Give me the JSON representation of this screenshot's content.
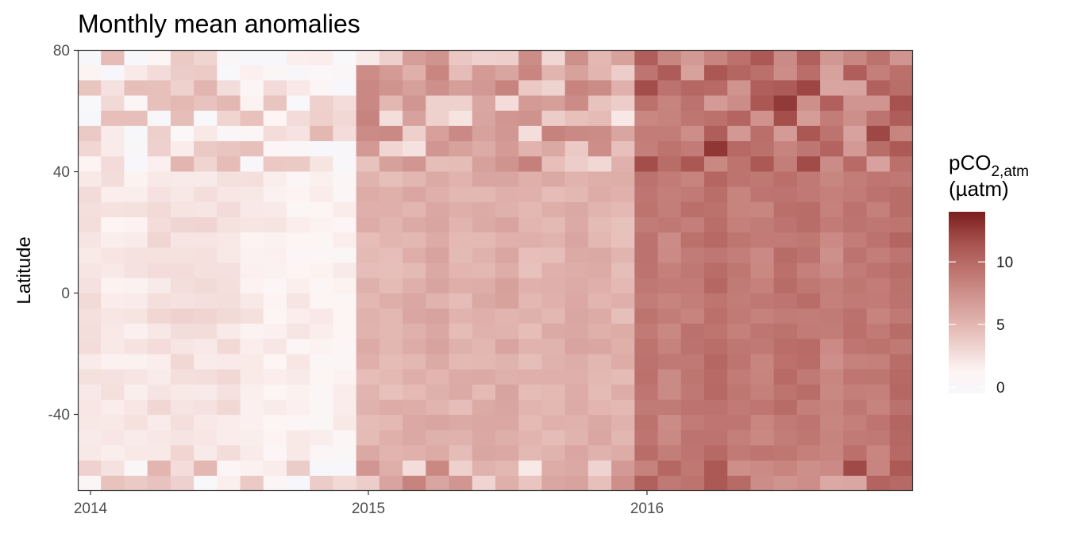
{
  "chart_data": {
    "type": "heatmap",
    "title": "Monthly mean anomalies",
    "xlabel": "",
    "ylabel": "Latitude",
    "x_tick_labels": [
      "2014",
      "2015",
      "2016"
    ],
    "y_tick_labels": [
      "80",
      "40",
      "0",
      "-40"
    ],
    "x_months": [
      "2014-01",
      "2014-02",
      "2014-03",
      "2014-04",
      "2014-05",
      "2014-06",
      "2014-07",
      "2014-08",
      "2014-09",
      "2014-10",
      "2014-11",
      "2014-12",
      "2015-01",
      "2015-02",
      "2015-03",
      "2015-04",
      "2015-05",
      "2015-06",
      "2015-07",
      "2015-08",
      "2015-09",
      "2015-10",
      "2015-11",
      "2015-12",
      "2016-01",
      "2016-02",
      "2016-03",
      "2016-04",
      "2016-05",
      "2016-06",
      "2016-07",
      "2016-08",
      "2016-09",
      "2016-10",
      "2016-11",
      "2016-12"
    ],
    "ylim": [
      -65,
      80
    ],
    "lat_rows": [
      77.5,
      72.5,
      67.5,
      62.5,
      57.5,
      52.5,
      47.5,
      42.5,
      37.5,
      32.5,
      27.5,
      22.5,
      17.5,
      12.5,
      7.5,
      2.5,
      -2.5,
      -7.5,
      -12.5,
      -17.5,
      -22.5,
      -27.5,
      -32.5,
      -37.5,
      -42.5,
      -47.5,
      -52.5,
      -57.5,
      -62.5
    ],
    "month_base": [
      2.2,
      2.0,
      1.8,
      2.4,
      2.6,
      2.5,
      2.4,
      2.0,
      1.6,
      1.6,
      1.4,
      1.3,
      5.2,
      5.0,
      5.4,
      5.6,
      5.2,
      5.4,
      5.8,
      5.0,
      5.2,
      5.6,
      5.4,
      5.0,
      9.2,
      8.4,
      9.0,
      9.6,
      8.8,
      8.6,
      9.4,
      9.2,
      8.2,
      9.0,
      8.8,
      9.6
    ],
    "colorbar": {
      "title_main": "pCO",
      "title_sub": "2,atm",
      "title_line2": "(µatm)",
      "min": -0.5,
      "max": 14,
      "ticks": [
        0,
        5,
        10
      ],
      "tick_labels": [
        "0",
        "5",
        "10"
      ],
      "colors": [
        "#f7f7fb",
        "#7a1e1e"
      ]
    }
  }
}
